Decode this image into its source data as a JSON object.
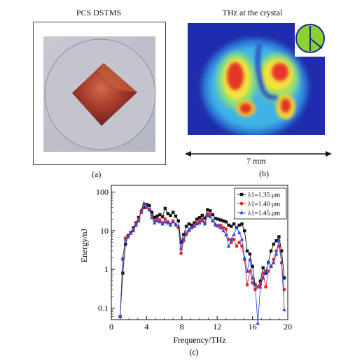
{
  "figure": {
    "panel_a": {
      "title": "PCS DSTMS",
      "label": "(a)"
    },
    "panel_b": {
      "title": "THz at the crystal",
      "scale_label": "7 mm",
      "label": "(b)"
    },
    "panel_c": {
      "label": "(c)"
    }
  },
  "chart_data": {
    "type": "line",
    "xlabel": "Frequency/THz",
    "ylabel": "Energy/nJ",
    "xlim": [
      0,
      20
    ],
    "ylim": [
      0.05,
      150
    ],
    "yscale": "log",
    "x_ticks": [
      "0",
      "4",
      "8",
      "12",
      "16",
      "20"
    ],
    "y_ticks": [
      "0.1",
      "1",
      "10",
      "100"
    ],
    "legend_position": "top-right",
    "series": [
      {
        "name": "λ1=1.35 μm",
        "color": "#111111",
        "marker": "square",
        "x": [
          1.0,
          1.3,
          1.6,
          1.9,
          2.2,
          2.5,
          2.8,
          3.1,
          3.4,
          3.7,
          4.0,
          4.3,
          4.6,
          4.9,
          5.2,
          5.5,
          5.8,
          6.1,
          6.4,
          6.7,
          7.0,
          7.3,
          7.6,
          7.9,
          8.2,
          8.5,
          8.8,
          9.1,
          9.4,
          9.7,
          10.0,
          10.3,
          10.6,
          10.9,
          11.2,
          11.5,
          11.8,
          12.1,
          12.4,
          12.7,
          13.0,
          13.3,
          13.6,
          13.9,
          14.2,
          14.5,
          14.8,
          15.1,
          15.4,
          15.7,
          16.0,
          16.3,
          16.6,
          16.9,
          17.2,
          17.5,
          17.8,
          18.1,
          18.4,
          18.7,
          19.0,
          19.3,
          19.6
        ],
        "values": [
          0.06,
          0.8,
          4.5,
          7.5,
          9,
          12,
          16,
          22,
          30,
          40,
          48,
          45,
          30,
          22,
          24,
          26,
          23,
          38,
          28,
          25,
          30,
          24,
          18,
          5,
          8,
          13,
          15,
          14,
          16,
          20,
          22,
          25,
          21,
          35,
          33,
          26,
          21,
          20,
          19,
          18,
          17,
          14,
          13,
          15,
          12,
          14,
          15,
          10,
          3,
          2.5,
          1.2,
          0.4,
          0.35,
          0.5,
          1.1,
          0.8,
          1.5,
          3,
          4.5,
          5.5,
          7,
          3,
          0.6
        ]
      },
      {
        "name": "λ1=1.40 μm",
        "color": "#e8282b",
        "marker": "circle",
        "x": [
          1.0,
          1.3,
          1.6,
          1.9,
          2.2,
          2.5,
          2.8,
          3.1,
          3.4,
          3.7,
          4.0,
          4.3,
          4.6,
          4.9,
          5.2,
          5.5,
          5.8,
          6.1,
          6.4,
          6.7,
          7.0,
          7.3,
          7.6,
          7.9,
          8.2,
          8.5,
          8.8,
          9.1,
          9.4,
          9.7,
          10.0,
          10.3,
          10.6,
          10.9,
          11.2,
          11.5,
          11.8,
          12.1,
          12.4,
          12.7,
          13.0,
          13.3,
          13.6,
          13.9,
          14.2,
          14.5,
          14.8,
          15.1,
          15.4,
          15.7,
          16.0,
          16.3,
          16.6,
          16.9,
          17.2,
          17.5,
          17.8,
          18.1,
          18.4,
          18.7,
          19.0,
          19.3,
          19.6
        ],
        "values": [
          0.06,
          1.8,
          6.5,
          7,
          8.5,
          11,
          15,
          20,
          30,
          45,
          40,
          35,
          25,
          18,
          20,
          19,
          16,
          20,
          17,
          15,
          18,
          14,
          12,
          2.6,
          5.5,
          8,
          10,
          12,
          14,
          16,
          18,
          20,
          16,
          28,
          26,
          18,
          14,
          13,
          14,
          12,
          11,
          6,
          5,
          6,
          4,
          5,
          4,
          1.8,
          0.4,
          0.9,
          0.45,
          0.3,
          0.35,
          0.4,
          0.8,
          0.35,
          0.9,
          1.2,
          1.8,
          3,
          4,
          1.5,
          0.3
        ]
      },
      {
        "name": "λ1=1.45 μm",
        "color": "#2b4fd6",
        "marker": "triangle",
        "x": [
          1.0,
          1.3,
          1.6,
          1.9,
          2.2,
          2.5,
          2.8,
          3.1,
          3.4,
          3.7,
          4.0,
          4.3,
          4.6,
          4.9,
          5.2,
          5.5,
          5.8,
          6.1,
          6.4,
          6.7,
          7.0,
          7.3,
          7.6,
          7.9,
          8.2,
          8.5,
          8.8,
          9.1,
          9.4,
          9.7,
          10.0,
          10.3,
          10.6,
          10.9,
          11.2,
          11.5,
          11.8,
          12.1,
          12.4,
          12.7,
          13.0,
          13.3,
          13.6,
          13.9,
          14.2,
          14.5,
          14.8,
          15.1,
          15.4,
          15.7,
          16.0,
          16.3,
          16.6,
          16.9,
          17.2,
          17.5,
          17.8,
          18.1,
          18.4,
          18.7,
          19.0,
          19.3,
          19.6
        ],
        "values": [
          0.06,
          2,
          6,
          7,
          9,
          10,
          14,
          18,
          35,
          52,
          45,
          35,
          22,
          16,
          18,
          17,
          15,
          17,
          16,
          14,
          17,
          15,
          13,
          3.5,
          6,
          9,
          11,
          12,
          13,
          15,
          16,
          18,
          15,
          25,
          23,
          18,
          15,
          14,
          12,
          10,
          8,
          4,
          6,
          8,
          12,
          9,
          6,
          2,
          0.9,
          1.8,
          0.6,
          0.4,
          0.04,
          0.35,
          0.6,
          0.9,
          1.5,
          1.2,
          1.5,
          2.5,
          6,
          1.5,
          0.09
        ]
      }
    ]
  }
}
